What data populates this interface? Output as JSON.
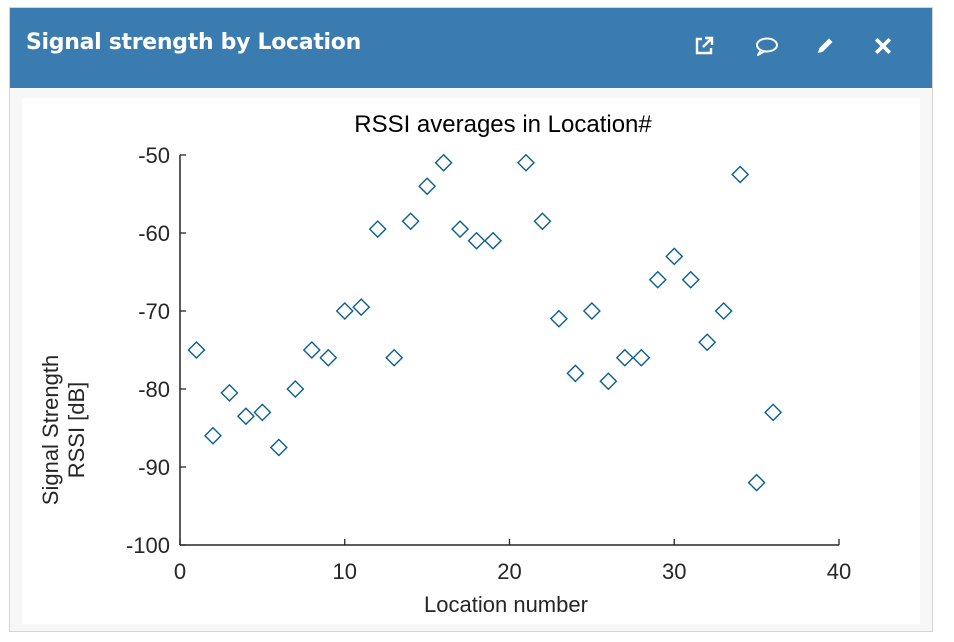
{
  "widget": {
    "title": "Signal strength by Location",
    "icons": [
      "external-link-icon",
      "comment-icon",
      "pencil-icon",
      "close-icon"
    ]
  },
  "colors": {
    "header": "#3a7bb0",
    "marker": "#0a5f8f",
    "axis": "#262626"
  },
  "chart_data": {
    "type": "scatter",
    "title": "RSSI averages in Location#",
    "xlabel": "Location number",
    "ylabel": [
      "Signal Strength",
      "RSSI [dB]"
    ],
    "xlim": [
      0,
      40
    ],
    "ylim": [
      -100,
      -50
    ],
    "xticks": [
      0,
      10,
      20,
      30,
      40
    ],
    "yticks": [
      -100,
      -90,
      -80,
      -70,
      -60,
      -50
    ],
    "grid": false,
    "marker": "diamond-open",
    "points": [
      {
        "x": 1,
        "y": -75
      },
      {
        "x": 2,
        "y": -86
      },
      {
        "x": 3,
        "y": -80.5
      },
      {
        "x": 4,
        "y": -83.5
      },
      {
        "x": 5,
        "y": -83
      },
      {
        "x": 6,
        "y": -87.5
      },
      {
        "x": 7,
        "y": -80
      },
      {
        "x": 8,
        "y": -75
      },
      {
        "x": 9,
        "y": -76
      },
      {
        "x": 10,
        "y": -70
      },
      {
        "x": 11,
        "y": -69.5
      },
      {
        "x": 12,
        "y": -59.5
      },
      {
        "x": 13,
        "y": -76
      },
      {
        "x": 14,
        "y": -58.5
      },
      {
        "x": 15,
        "y": -54
      },
      {
        "x": 16,
        "y": -51
      },
      {
        "x": 17,
        "y": -59.5
      },
      {
        "x": 18,
        "y": -61
      },
      {
        "x": 19,
        "y": -61
      },
      {
        "x": 21,
        "y": -51
      },
      {
        "x": 22,
        "y": -58.5
      },
      {
        "x": 23,
        "y": -71
      },
      {
        "x": 24,
        "y": -78
      },
      {
        "x": 25,
        "y": -70
      },
      {
        "x": 26,
        "y": -79
      },
      {
        "x": 27,
        "y": -76
      },
      {
        "x": 28,
        "y": -76
      },
      {
        "x": 29,
        "y": -66
      },
      {
        "x": 30,
        "y": -63
      },
      {
        "x": 31,
        "y": -66
      },
      {
        "x": 32,
        "y": -74
      },
      {
        "x": 33,
        "y": -70
      },
      {
        "x": 34,
        "y": -52.5
      },
      {
        "x": 35,
        "y": -92
      },
      {
        "x": 36,
        "y": -83
      }
    ]
  }
}
